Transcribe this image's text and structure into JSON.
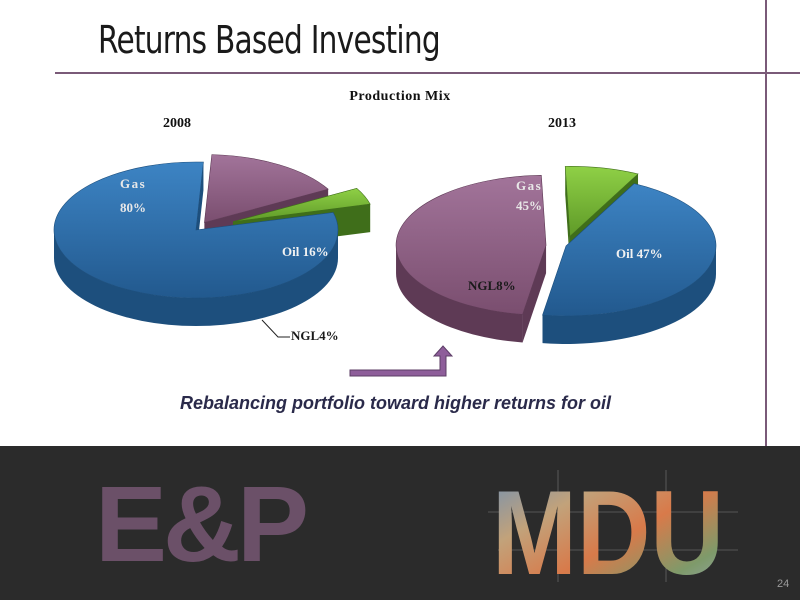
{
  "slide": {
    "title": "Returns Based Investing",
    "caption": "Rebalancing portfolio toward higher returns for oil",
    "page_number": "24"
  },
  "logos": {
    "ep": "E&P",
    "mdu": "MDU"
  },
  "chart_data": {
    "type": "pie",
    "title": "Production Mix",
    "colors": {
      "Gas": "#2e6fa8",
      "Oil": "#8e5e82",
      "NGL": "#7cbd3a"
    },
    "charts": [
      {
        "year": "2008",
        "slices": [
          {
            "name": "Gas",
            "value": 80,
            "label": "Gas 80%"
          },
          {
            "name": "Oil",
            "value": 16,
            "label": "Oil 16%"
          },
          {
            "name": "NGL",
            "value": 4,
            "label": "NGL4%"
          }
        ]
      },
      {
        "year": "2013",
        "slices": [
          {
            "name": "Gas",
            "value": 45,
            "label": "Gas 45%"
          },
          {
            "name": "Oil",
            "value": 47,
            "label": "Oil 47%"
          },
          {
            "name": "NGL",
            "value": 8,
            "label": "NGL8%"
          }
        ]
      }
    ]
  }
}
